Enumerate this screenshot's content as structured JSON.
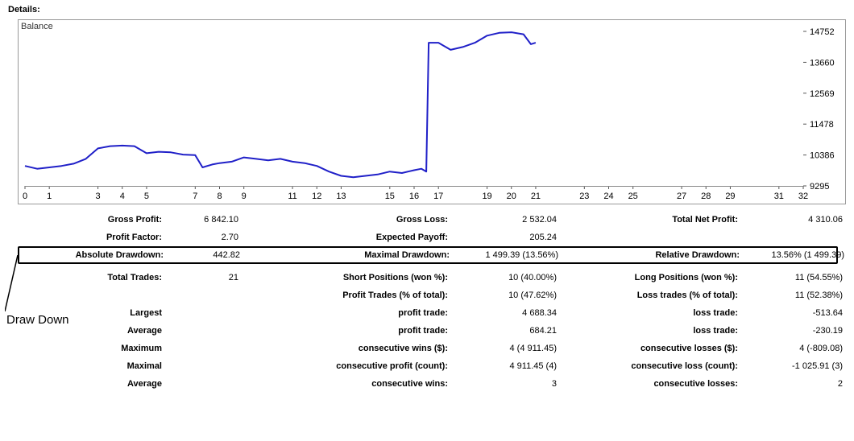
{
  "header": "Details:",
  "chart": {
    "type": "line",
    "label": "Balance",
    "line_color": "#2020c8",
    "line_width": 2,
    "background_color": "#ffffff",
    "frame_color": "#999999",
    "text_color": "#000000",
    "xlim": [
      0,
      32
    ],
    "ylim": [
      9295,
      14752
    ],
    "x_ticks": [
      0,
      1,
      3,
      4,
      5,
      7,
      8,
      9,
      11,
      12,
      13,
      15,
      16,
      17,
      19,
      20,
      21,
      23,
      24,
      25,
      27,
      28,
      29,
      31,
      32
    ],
    "y_ticks": [
      9295,
      10386,
      11478,
      12569,
      13660,
      14752
    ],
    "axis_fontsize": 11,
    "points": [
      {
        "x": 0,
        "y": 10000
      },
      {
        "x": 0.5,
        "y": 9900
      },
      {
        "x": 1,
        "y": 9950
      },
      {
        "x": 1.5,
        "y": 10000
      },
      {
        "x": 2,
        "y": 10080
      },
      {
        "x": 2.5,
        "y": 10250
      },
      {
        "x": 3,
        "y": 10620
      },
      {
        "x": 3.5,
        "y": 10700
      },
      {
        "x": 4,
        "y": 10720
      },
      {
        "x": 4.5,
        "y": 10700
      },
      {
        "x": 5,
        "y": 10450
      },
      {
        "x": 5.5,
        "y": 10500
      },
      {
        "x": 6,
        "y": 10480
      },
      {
        "x": 6.5,
        "y": 10400
      },
      {
        "x": 7,
        "y": 10380
      },
      {
        "x": 7.3,
        "y": 9950
      },
      {
        "x": 7.7,
        "y": 10050
      },
      {
        "x": 8,
        "y": 10100
      },
      {
        "x": 8.5,
        "y": 10150
      },
      {
        "x": 9,
        "y": 10300
      },
      {
        "x": 9.5,
        "y": 10250
      },
      {
        "x": 10,
        "y": 10200
      },
      {
        "x": 10.5,
        "y": 10250
      },
      {
        "x": 11,
        "y": 10150
      },
      {
        "x": 11.5,
        "y": 10100
      },
      {
        "x": 12,
        "y": 10000
      },
      {
        "x": 12.5,
        "y": 9800
      },
      {
        "x": 13,
        "y": 9650
      },
      {
        "x": 13.5,
        "y": 9600
      },
      {
        "x": 14,
        "y": 9650
      },
      {
        "x": 14.5,
        "y": 9700
      },
      {
        "x": 15,
        "y": 9800
      },
      {
        "x": 15.5,
        "y": 9750
      },
      {
        "x": 16,
        "y": 9850
      },
      {
        "x": 16.3,
        "y": 9900
      },
      {
        "x": 16.5,
        "y": 9800
      },
      {
        "x": 16.6,
        "y": 14350
      },
      {
        "x": 17,
        "y": 14350
      },
      {
        "x": 17.5,
        "y": 14100
      },
      {
        "x": 18,
        "y": 14200
      },
      {
        "x": 18.5,
        "y": 14350
      },
      {
        "x": 19,
        "y": 14600
      },
      {
        "x": 19.5,
        "y": 14700
      },
      {
        "x": 20,
        "y": 14720
      },
      {
        "x": 20.5,
        "y": 14650
      },
      {
        "x": 20.8,
        "y": 14300
      },
      {
        "x": 21,
        "y": 14350
      }
    ]
  },
  "rows": [
    {
      "l1": "Gross Profit:",
      "v1": "6 842.10",
      "l2": "Gross Loss:",
      "v2": "2 532.04",
      "l3": "Total Net Profit:",
      "v3": "4 310.06"
    },
    {
      "l1": "Profit Factor:",
      "v1": "2.70",
      "l2": "Expected Payoff:",
      "v2": "205.24",
      "l3": "",
      "v3": ""
    },
    {
      "l1": "Absolute Drawdown:",
      "v1": "442.82",
      "l2": "Maximal Drawdown:",
      "v2": "1 499.39 (13.56%)",
      "l3": "Relative Drawdown:",
      "v3": "13.56% (1 499.39)",
      "boxed": true
    },
    {
      "l1": "Total Trades:",
      "v1": "21",
      "l2": "Short Positions (won %):",
      "v2": "10 (40.00%)",
      "l3": "Long Positions (won %):",
      "v3": "11 (54.55%)"
    },
    {
      "l1": "",
      "v1": "",
      "l2": "Profit Trades (% of total):",
      "v2": "10 (47.62%)",
      "l3": "Loss trades (% of total):",
      "v3": "11 (52.38%)"
    },
    {
      "l1": "Largest",
      "v1": "",
      "l2": "profit trade:",
      "v2": "4 688.34",
      "l3": "loss trade:",
      "v3": "-513.64"
    },
    {
      "l1": "Average",
      "v1": "",
      "l2": "profit trade:",
      "v2": "684.21",
      "l3": "loss trade:",
      "v3": "-230.19"
    },
    {
      "l1": "Maximum",
      "v1": "",
      "l2": "consecutive wins ($):",
      "v2": "4 (4 911.45)",
      "l3": "consecutive losses ($):",
      "v3": "4 (-809.08)"
    },
    {
      "l1": "Maximal",
      "v1": "",
      "l2": "consecutive profit (count):",
      "v2": "4 911.45 (4)",
      "l3": "consecutive loss (count):",
      "v3": "-1 025.91 (3)"
    },
    {
      "l1": "Average",
      "v1": "",
      "l2": "consecutive wins:",
      "v2": "3",
      "l3": "consecutive losses:",
      "v3": "2"
    }
  ],
  "callout": {
    "text": "Draw Down"
  }
}
